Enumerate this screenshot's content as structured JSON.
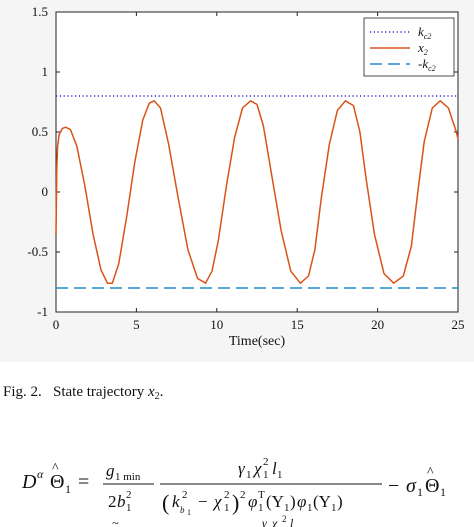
{
  "caption": {
    "fig_label": "Fig. 2.",
    "text": "State trajectory",
    "var": "x",
    "var_sub": "2",
    "period": "."
  },
  "chart_data": {
    "type": "line",
    "title": "",
    "xlabel": "Time(sec)",
    "ylabel": "",
    "xlim": [
      0,
      25
    ],
    "ylim": [
      -1,
      1.5
    ],
    "xticks": [
      0,
      5,
      10,
      15,
      20,
      25
    ],
    "yticks": [
      -1,
      -0.5,
      0,
      0.5,
      1,
      1.5
    ],
    "ytick_labels": [
      "-1",
      "-0.5",
      "0",
      "0.5",
      "1",
      "1.5"
    ],
    "grid": false,
    "legend_position": "top-right",
    "series": [
      {
        "name": "k_c2",
        "legend_label": "k",
        "legend_sub": "c2",
        "style": "dotted",
        "color": "#2b2bd6",
        "x": [
          0,
          25
        ],
        "y": [
          0.8,
          0.8
        ]
      },
      {
        "name": "x_2",
        "legend_label": "x",
        "legend_sub": "2",
        "style": "solid",
        "color": "#d95319",
        "x": [
          0,
          0.05,
          0.1,
          0.2,
          0.4,
          0.6,
          0.9,
          1.3,
          1.8,
          2.3,
          2.8,
          3.2,
          3.5,
          3.9,
          4.4,
          4.9,
          5.4,
          5.8,
          6.1,
          6.5,
          7.0,
          7.6,
          8.2,
          8.8,
          9.3,
          9.7,
          10.1,
          10.6,
          11.1,
          11.6,
          12.1,
          12.5,
          12.9,
          13.4,
          14.0,
          14.6,
          15.2,
          15.7,
          16.1,
          16.5,
          17.0,
          17.5,
          18.0,
          18.5,
          18.9,
          19.3,
          19.8,
          20.4,
          21.0,
          21.6,
          22.1,
          22.5,
          22.9,
          23.4,
          23.9,
          24.4,
          24.9,
          25.0
        ],
        "y": [
          -0.35,
          0.2,
          0.38,
          0.48,
          0.53,
          0.54,
          0.52,
          0.38,
          0.05,
          -0.35,
          -0.65,
          -0.76,
          -0.76,
          -0.6,
          -0.2,
          0.25,
          0.6,
          0.74,
          0.76,
          0.7,
          0.4,
          -0.05,
          -0.48,
          -0.72,
          -0.76,
          -0.66,
          -0.4,
          0.05,
          0.45,
          0.7,
          0.76,
          0.73,
          0.55,
          0.15,
          -0.32,
          -0.66,
          -0.76,
          -0.7,
          -0.48,
          -0.05,
          0.4,
          0.68,
          0.76,
          0.72,
          0.5,
          0.1,
          -0.35,
          -0.68,
          -0.76,
          -0.7,
          -0.45,
          0.0,
          0.42,
          0.7,
          0.76,
          0.7,
          0.5,
          0.44
        ]
      },
      {
        "name": "-k_c2",
        "legend_label": "-k",
        "legend_sub": "c2",
        "style": "dashed",
        "color": "#1f8fc8",
        "x": [
          0,
          25
        ],
        "y": [
          -0.8,
          -0.8
        ]
      }
    ]
  }
}
